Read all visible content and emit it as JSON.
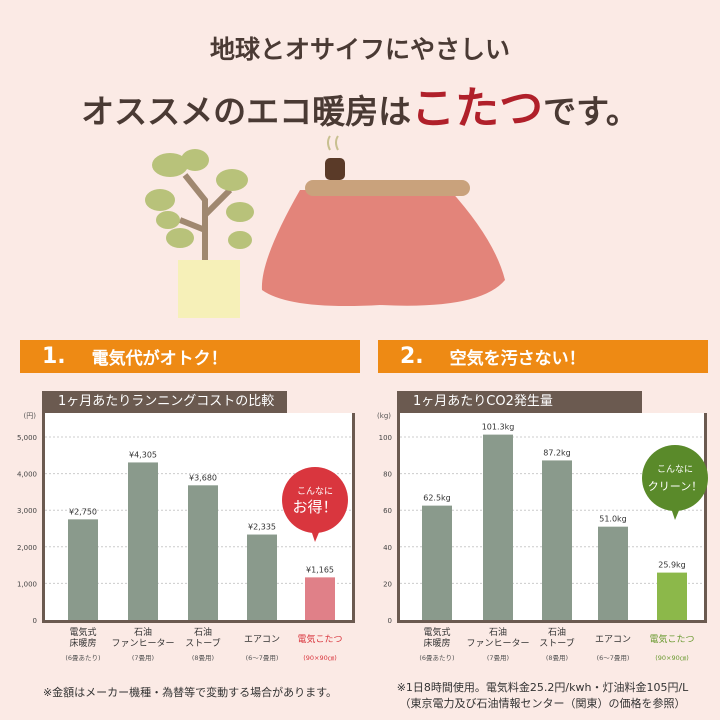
{
  "header": {
    "line1": "地球とオサイフにやさしい",
    "line2_pre": "オススメのエコ暖房は",
    "line2_highlight": "こたつ",
    "line2_post": "です。"
  },
  "sections": [
    {
      "number": "1.",
      "title": "電気代がオトク！"
    },
    {
      "number": "2.",
      "title": "空気を汚さない！"
    }
  ],
  "colors": {
    "bar": "#8a9a8c",
    "highlight_cost": "#e08088",
    "highlight_co2": "#8cb84a",
    "bubble_cost": "#d9363e",
    "bubble_co2": "#5a8a2a",
    "section": "#ee8a14",
    "title_bar": "#6b5a50"
  },
  "chart_data": [
    {
      "type": "bar",
      "title": "1ヶ月あたりランニングコストの比較",
      "yunit": "(円)",
      "ylim": [
        0,
        5000
      ],
      "yticks": [
        "0",
        "1,000",
        "2,000",
        "3,000",
        "4,000",
        "5,000"
      ],
      "ytick_values": [
        0,
        1000,
        2000,
        3000,
        4000,
        5000
      ],
      "grid": true,
      "categories": [
        {
          "lines": [
            "電気式",
            "床暖房"
          ],
          "sub": "(6畳あたり)"
        },
        {
          "lines": [
            "石油",
            "ファンヒーター"
          ],
          "sub": "(7畳用)"
        },
        {
          "lines": [
            "石油",
            "ストーブ"
          ],
          "sub": "(8畳用)"
        },
        {
          "lines": [
            "エアコン"
          ],
          "sub": "(6〜7畳用)"
        },
        {
          "lines": [
            "電気こたつ"
          ],
          "sub": "(90×90㎝)"
        }
      ],
      "values": [
        2750,
        4305,
        3680,
        2335,
        1165
      ],
      "labels": [
        "¥2,750",
        "¥4,305",
        "¥3,680",
        "¥2,335",
        "¥1,165"
      ],
      "callout": [
        "こんなに",
        "お得！"
      ],
      "footnote": [
        "※金額はメーカー機種・為替等で変動する場合があります。"
      ]
    },
    {
      "type": "bar",
      "title": "1ヶ月あたりCO2発生量",
      "yunit": "(kg)",
      "ylim": [
        0,
        100
      ],
      "yticks": [
        "0",
        "20",
        "40",
        "60",
        "80",
        "100"
      ],
      "ytick_values": [
        0,
        20,
        40,
        60,
        80,
        100
      ],
      "grid": true,
      "categories": [
        {
          "lines": [
            "電気式",
            "床暖房"
          ],
          "sub": "(6畳あたり)"
        },
        {
          "lines": [
            "石油",
            "ファンヒーター"
          ],
          "sub": "(7畳用)"
        },
        {
          "lines": [
            "石油",
            "ストーブ"
          ],
          "sub": "(8畳用)"
        },
        {
          "lines": [
            "エアコン"
          ],
          "sub": "(6〜7畳用)"
        },
        {
          "lines": [
            "電気こたつ"
          ],
          "sub": "(90×90㎝)"
        }
      ],
      "values": [
        62.5,
        101.3,
        87.2,
        51.0,
        25.9
      ],
      "labels": [
        "62.5kg",
        "101.3kg",
        "87.2kg",
        "51.0kg",
        "25.9kg"
      ],
      "callout": [
        "こんなに",
        "クリーン！"
      ],
      "footnote": [
        "※1日8時間使用。電気料金25.2円/kwh・灯油料金105円/L",
        "（東京電力及び石油情報センター（関東）の価格を参照）"
      ]
    }
  ]
}
